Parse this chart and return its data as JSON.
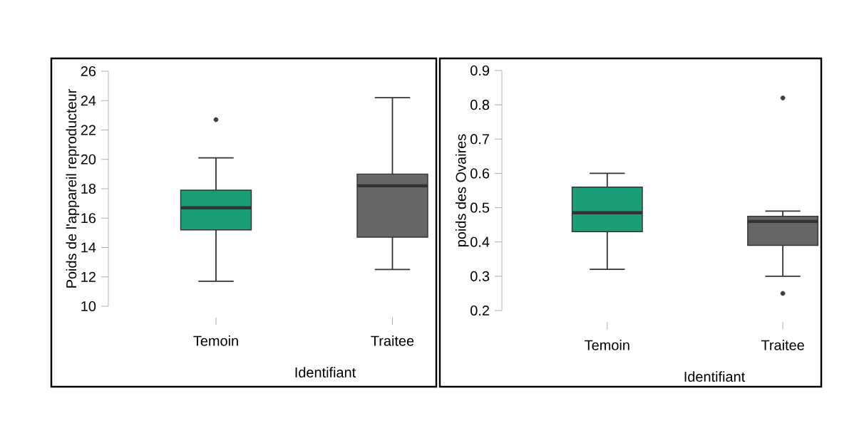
{
  "chart_data": [
    {
      "type": "box",
      "xlabel": "Identifiant",
      "ylabel": "Poids de l'appareil reproducteur",
      "categories": [
        "Temoin",
        "Traitee"
      ],
      "ylim": [
        10,
        26
      ],
      "yticks": [
        10,
        12,
        14,
        16,
        18,
        20,
        22,
        24,
        26
      ],
      "colors": [
        "#1b9e77",
        "#666666"
      ],
      "boxes": [
        {
          "low": 11.7,
          "q1": 15.2,
          "median": 16.7,
          "q3": 17.9,
          "high": 20.1,
          "outliers": [
            22.7
          ]
        },
        {
          "low": 12.5,
          "q1": 14.7,
          "median": 18.2,
          "q3": 19.0,
          "high": 24.2
        }
      ]
    },
    {
      "type": "box",
      "xlabel": "Identifiant",
      "ylabel": "poids des Ovaires",
      "categories": [
        "Temoin",
        "Traitee"
      ],
      "ylim": [
        0.2,
        0.9
      ],
      "yticks": [
        0.2,
        0.3,
        0.4,
        0.5,
        0.6,
        0.7,
        0.8,
        0.9
      ],
      "colors": [
        "#1b9e77",
        "#666666"
      ],
      "boxes": [
        {
          "low": 0.32,
          "q1": 0.43,
          "median": 0.485,
          "q3": 0.56,
          "high": 0.6
        },
        {
          "low": 0.3,
          "q1": 0.39,
          "median": 0.46,
          "q3": 0.475,
          "high": 0.49,
          "outliers": [
            0.82,
            0.25
          ]
        }
      ]
    }
  ]
}
